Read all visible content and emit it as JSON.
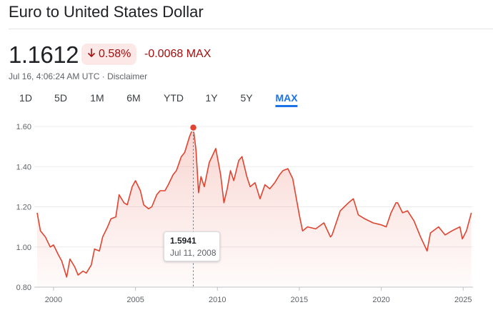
{
  "header": {
    "title": "Euro to United States Dollar"
  },
  "quote": {
    "price": "1.1612",
    "change_arrow_icon": "arrow-down-icon",
    "change_percent": "0.58%",
    "change_abs": "-0.0068 MAX",
    "timestamp": "Jul 16, 4:06:24 AM UTC",
    "separator": "·",
    "disclaimer": "Disclaimer"
  },
  "range_tabs": [
    {
      "label": "1D",
      "active": false
    },
    {
      "label": "5D",
      "active": false
    },
    {
      "label": "1M",
      "active": false
    },
    {
      "label": "6M",
      "active": false
    },
    {
      "label": "YTD",
      "active": false
    },
    {
      "label": "1Y",
      "active": false
    },
    {
      "label": "5Y",
      "active": false
    },
    {
      "label": "MAX",
      "active": true
    }
  ],
  "tooltip": {
    "value": "1.5941",
    "date": "Jul 11, 2008"
  },
  "colors": {
    "line": "#e2432f",
    "negative": "#a50e0e",
    "accent": "#1a73e8"
  },
  "chart_data": {
    "type": "area",
    "title": "",
    "xlabel": "",
    "ylabel": "",
    "ylim": [
      0.8,
      1.6
    ],
    "xlim": [
      1999.0,
      2025.6
    ],
    "y_ticks": [
      "0.80",
      "1.00",
      "1.20",
      "1.40",
      "1.60"
    ],
    "x_ticks": [
      "2000",
      "2005",
      "2010",
      "2015",
      "2020",
      "2025"
    ],
    "grid": true,
    "highlight": {
      "x": 2008.53,
      "y": 1.5941,
      "label": "1.5941",
      "date": "Jul 11, 2008"
    },
    "series": [
      {
        "x": [
          1999.0,
          1999.2,
          1999.5,
          1999.8,
          2000.0,
          2000.3,
          2000.5,
          2000.8,
          2001.0,
          2001.3,
          2001.5,
          2001.8,
          2002.0,
          2002.3,
          2002.5,
          2002.8,
          2003.0,
          2003.3,
          2003.5,
          2003.8,
          2004.0,
          2004.3,
          2004.5,
          2004.8,
          2005.0,
          2005.3,
          2005.5,
          2005.8,
          2006.0,
          2006.3,
          2006.5,
          2006.8,
          2007.0,
          2007.3,
          2007.5,
          2007.8,
          2008.0,
          2008.3,
          2008.53,
          2008.7,
          2008.85,
          2009.0,
          2009.2,
          2009.5,
          2009.9,
          2010.2,
          2010.4,
          2010.6,
          2010.8,
          2011.0,
          2011.3,
          2011.5,
          2011.8,
          2012.0,
          2012.3,
          2012.6,
          2012.9,
          2013.2,
          2013.5,
          2013.8,
          2014.0,
          2014.3,
          2014.6,
          2014.8,
          2015.0,
          2015.2,
          2015.5,
          2016.0,
          2016.5,
          2016.9,
          2017.0,
          2017.5,
          2018.0,
          2018.3,
          2018.6,
          2019.0,
          2019.5,
          2020.0,
          2020.3,
          2020.6,
          2020.9,
          2021.0,
          2021.3,
          2021.6,
          2022.0,
          2022.4,
          2022.8,
          2023.0,
          2023.5,
          2023.9,
          2024.3,
          2024.8,
          2024.95,
          2025.2,
          2025.5
        ],
        "y": [
          1.17,
          1.08,
          1.05,
          1.0,
          1.01,
          0.96,
          0.93,
          0.85,
          0.94,
          0.9,
          0.86,
          0.88,
          0.87,
          0.91,
          0.99,
          0.98,
          1.05,
          1.1,
          1.14,
          1.15,
          1.26,
          1.22,
          1.21,
          1.3,
          1.33,
          1.28,
          1.21,
          1.19,
          1.2,
          1.26,
          1.28,
          1.28,
          1.31,
          1.36,
          1.38,
          1.45,
          1.47,
          1.55,
          1.5941,
          1.48,
          1.27,
          1.35,
          1.3,
          1.42,
          1.49,
          1.36,
          1.22,
          1.29,
          1.38,
          1.33,
          1.43,
          1.45,
          1.35,
          1.3,
          1.32,
          1.24,
          1.31,
          1.29,
          1.32,
          1.36,
          1.38,
          1.39,
          1.34,
          1.25,
          1.16,
          1.08,
          1.1,
          1.09,
          1.12,
          1.05,
          1.06,
          1.18,
          1.22,
          1.24,
          1.16,
          1.14,
          1.12,
          1.11,
          1.1,
          1.17,
          1.22,
          1.22,
          1.17,
          1.18,
          1.13,
          1.05,
          0.98,
          1.07,
          1.1,
          1.06,
          1.08,
          1.1,
          1.04,
          1.08,
          1.17
        ]
      }
    ]
  }
}
